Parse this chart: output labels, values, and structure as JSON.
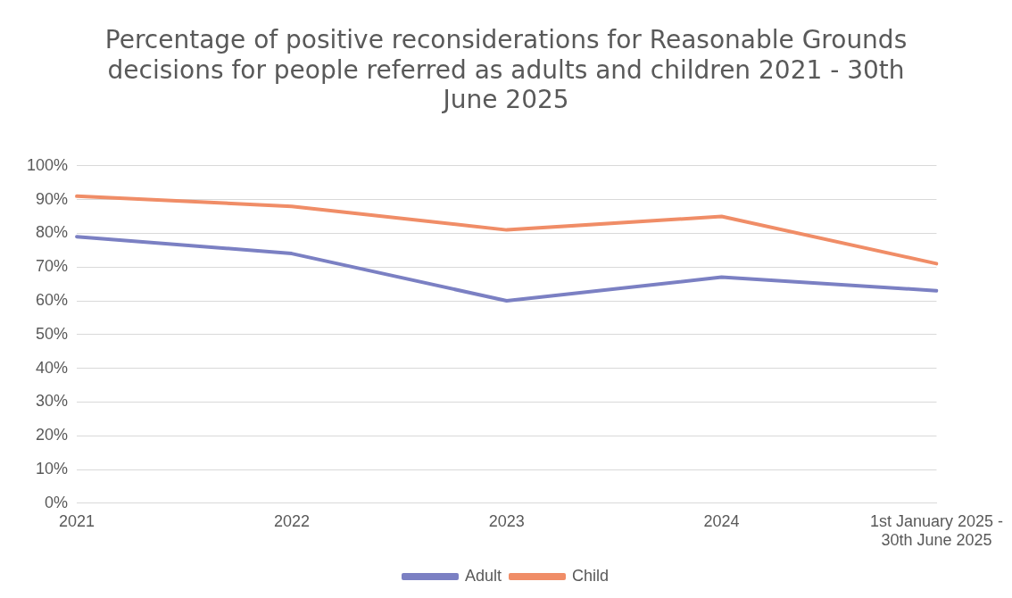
{
  "chart_data": {
    "type": "line",
    "title": "Percentage of positive reconsiderations for Reasonable Grounds decisions for people referred as adults and children 2021 - 30th June 2025",
    "categories": [
      "2021",
      "2022",
      "2023",
      "2024",
      "1st January 2025 - 30th June 2025"
    ],
    "series": [
      {
        "name": "Adult",
        "color": "#7b80c3",
        "values": [
          79,
          74,
          60,
          67,
          63
        ]
      },
      {
        "name": "Child",
        "color": "#f08d67",
        "values": [
          91,
          88,
          81,
          85,
          71
        ]
      }
    ],
    "ylim": [
      0,
      100
    ],
    "yticks": [
      {
        "value": 0,
        "label": "0%"
      },
      {
        "value": 10,
        "label": "10%"
      },
      {
        "value": 20,
        "label": "20%"
      },
      {
        "value": 30,
        "label": "30%"
      },
      {
        "value": 40,
        "label": "40%"
      },
      {
        "value": 50,
        "label": "50%"
      },
      {
        "value": 60,
        "label": "60%"
      },
      {
        "value": 70,
        "label": "70%"
      },
      {
        "value": 80,
        "label": "80%"
      },
      {
        "value": 90,
        "label": "90%"
      },
      {
        "value": 100,
        "label": "100%"
      }
    ],
    "grid": "y",
    "legend": "bottom",
    "marker": "none",
    "line_style": "solid"
  }
}
